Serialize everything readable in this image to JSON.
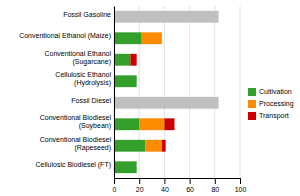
{
  "chart_data": {
    "type": "bar",
    "orientation": "horizontal",
    "stacked": true,
    "categories": [
      "Fossil Gasoline",
      "Conventional Ethanol (Maize)",
      "Conventional Ethanol\n(Sugarcane)",
      "Cellulosic Ethanol\n(Hydrolysis)",
      "Fossil Diesel",
      "Conventional Biodiesel\n(Soybean)",
      "Conventional Biodiesel\n(Rapeseed)",
      "Cellulosic Biodiesel (FT)"
    ],
    "series": [
      {
        "color": "#c0c0c0",
        "values": [
          83,
          0,
          0,
          0,
          83,
          0,
          0,
          0
        ]
      },
      {
        "name": "Cultivation",
        "color": "#33a02c",
        "values": [
          0,
          22,
          13,
          18,
          0,
          20,
          25,
          18
        ]
      },
      {
        "name": "Processing",
        "color": "#ff8c00",
        "values": [
          0,
          16,
          0,
          0,
          0,
          20,
          13,
          0
        ]
      },
      {
        "name": "Transport",
        "color": "#cc0000",
        "values": [
          0,
          0,
          5,
          0,
          0,
          8,
          3,
          0
        ]
      }
    ],
    "xlim": [
      0,
      100
    ],
    "xticks": [
      0,
      20,
      40,
      60,
      80,
      100
    ],
    "grid": true,
    "legend": "right"
  }
}
